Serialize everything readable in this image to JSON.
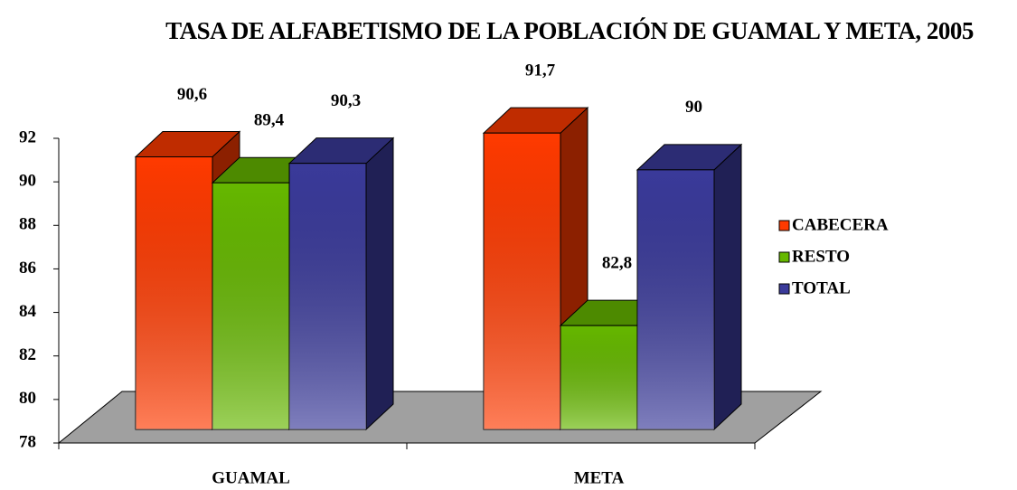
{
  "chart_data": {
    "type": "bar3d",
    "title": "TASA DE ALFABETISMO DE LA POBLACIÓN DE GUAMAL Y META, 2005",
    "categories": [
      "GUAMAL",
      "META"
    ],
    "series": [
      {
        "name": "CABECERA",
        "color": "#ff3a00",
        "values": [
          90.6,
          91.7
        ],
        "value_labels": [
          "90,6",
          "91,7"
        ]
      },
      {
        "name": "RESTO",
        "color": "#66b800",
        "values": [
          89.4,
          82.8
        ],
        "value_labels": [
          "89,4",
          "82,8"
        ]
      },
      {
        "name": "TOTAL",
        "color": "#3a3a9a",
        "values": [
          90.3,
          90
        ],
        "value_labels": [
          "90,3",
          "90"
        ]
      }
    ],
    "ylim": [
      78,
      92
    ],
    "yticks": [
      78,
      80,
      82,
      84,
      86,
      88,
      90,
      92
    ],
    "legend": "right"
  }
}
